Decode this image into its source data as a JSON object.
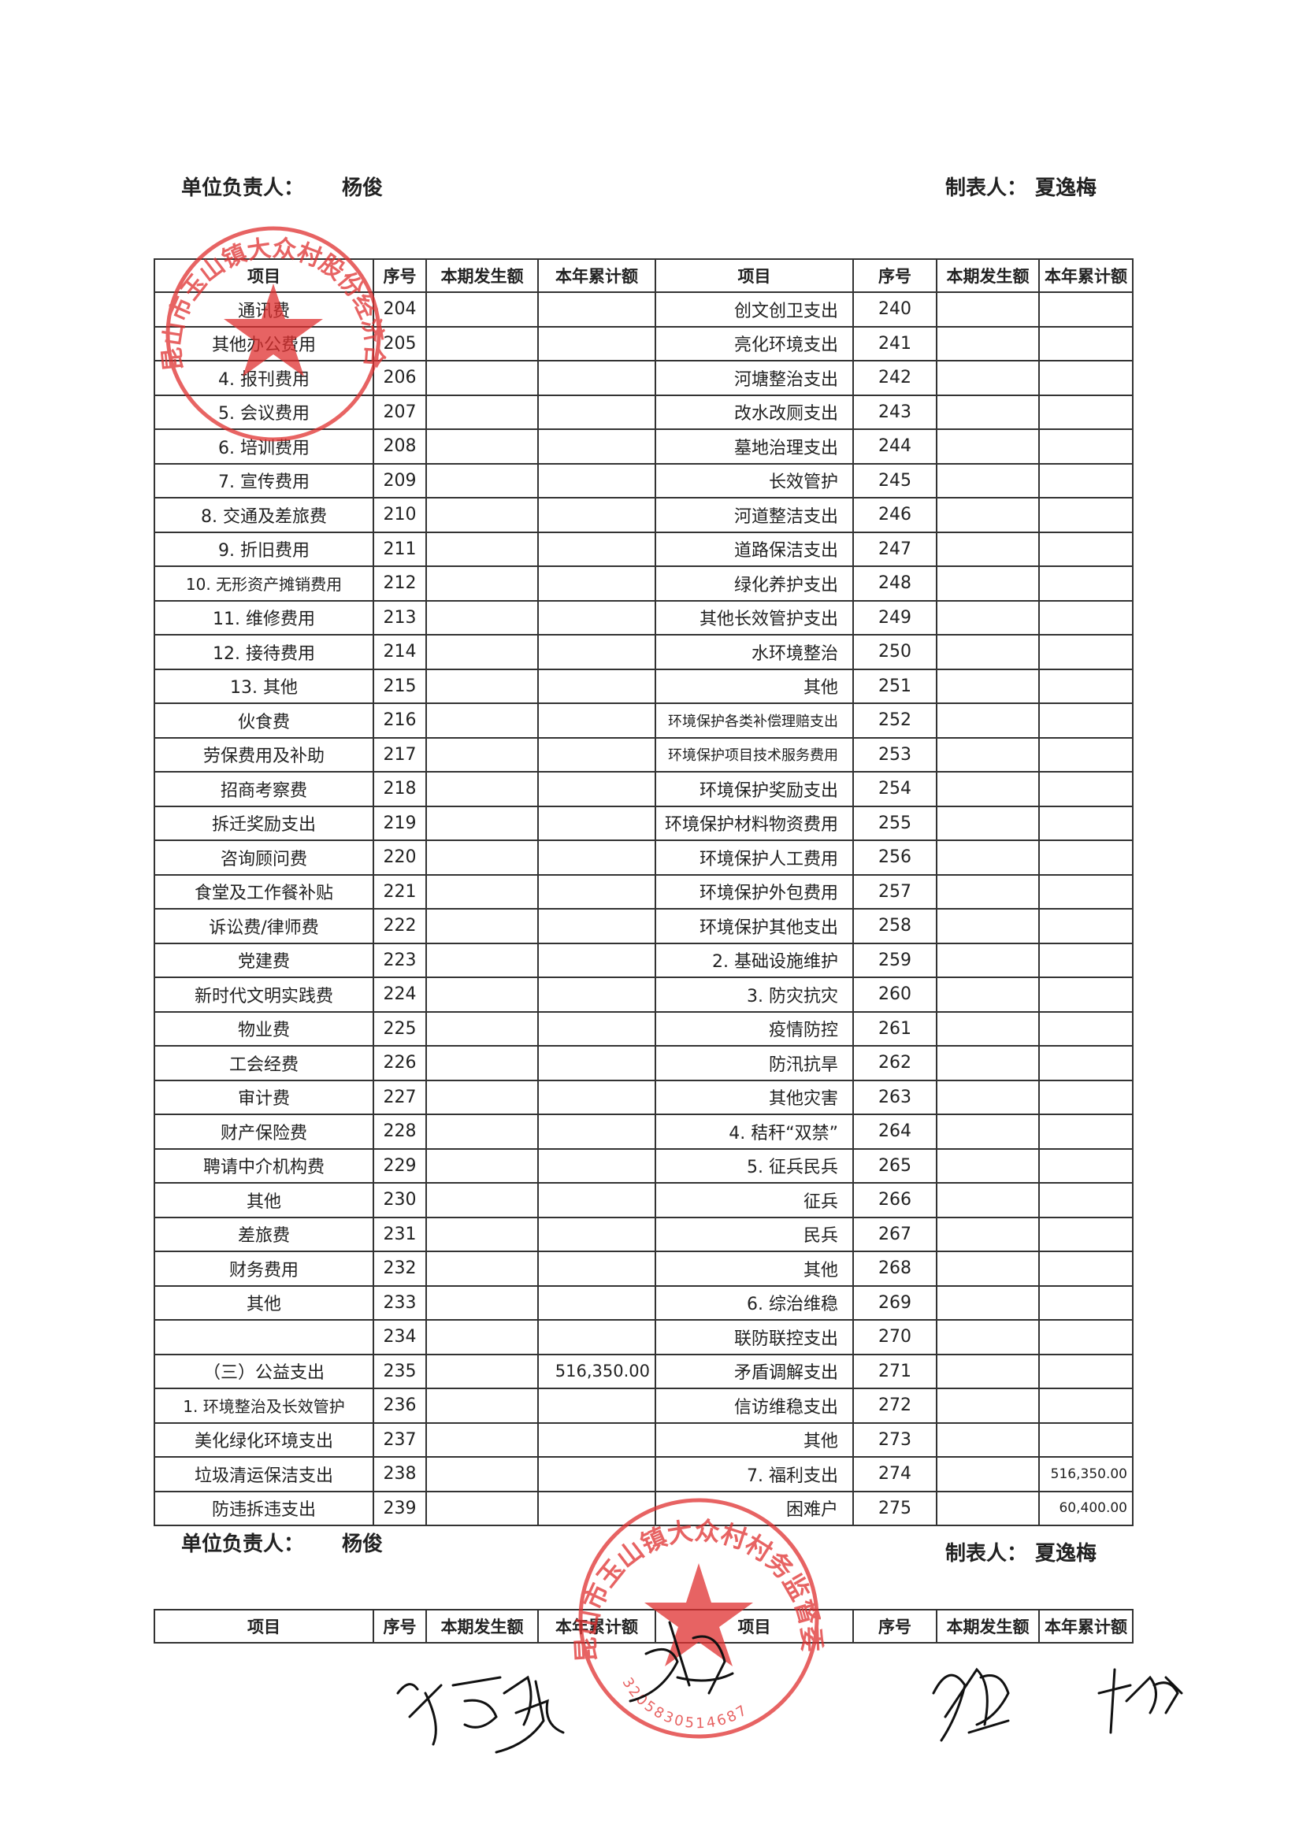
{
  "header": {
    "responsible_label": "单位负责人：",
    "responsible_name": "杨俊",
    "preparer_label": "制表人：",
    "preparer_name": "夏逸梅"
  },
  "table": {
    "columns": [
      "项目",
      "序号",
      "本期发生额",
      "本年累计额",
      "项目",
      "序号",
      "本期发生额",
      "本年累计额"
    ],
    "rows": [
      [
        "通讯费",
        "204",
        null,
        null,
        "创文创卫支出",
        "240",
        null,
        null
      ],
      [
        "其他办公费用",
        "205",
        null,
        null,
        "亮化环境支出",
        "241",
        null,
        null
      ],
      [
        "4. 报刊费用",
        "206",
        null,
        null,
        "河塘整治支出",
        "242",
        null,
        null
      ],
      [
        "5. 会议费用",
        "207",
        null,
        null,
        "改水改厕支出",
        "243",
        null,
        null
      ],
      [
        "6. 培训费用",
        "208",
        null,
        null,
        "墓地治理支出",
        "244",
        null,
        null
      ],
      [
        "7. 宣传费用",
        "209",
        null,
        null,
        "长效管护",
        "245",
        null,
        null
      ],
      [
        "8. 交通及差旅费",
        "210",
        null,
        null,
        "河道整洁支出",
        "246",
        null,
        null
      ],
      [
        "9. 折旧费用",
        "211",
        null,
        null,
        "道路保洁支出",
        "247",
        null,
        null
      ],
      [
        "10. 无形资产摊销费用",
        "212",
        null,
        null,
        "绿化养护支出",
        "248",
        null,
        null
      ],
      [
        "11. 维修费用",
        "213",
        null,
        null,
        "其他长效管护支出",
        "249",
        null,
        null
      ],
      [
        "12. 接待费用",
        "214",
        null,
        null,
        "水环境整治",
        "250",
        null,
        null
      ],
      [
        "13. 其他",
        "215",
        null,
        null,
        "其他",
        "251",
        null,
        null
      ],
      [
        "伙食费",
        "216",
        null,
        null,
        "环境保护各类补偿理赔支出",
        "252",
        null,
        null
      ],
      [
        "劳保费用及补助",
        "217",
        null,
        null,
        "环境保护项目技术服务费用",
        "253",
        null,
        null
      ],
      [
        "招商考察费",
        "218",
        null,
        null,
        "环境保护奖励支出",
        "254",
        null,
        null
      ],
      [
        "拆迁奖励支出",
        "219",
        null,
        null,
        "环境保护材料物资费用",
        "255",
        null,
        null
      ],
      [
        "咨询顾问费",
        "220",
        null,
        null,
        "环境保护人工费用",
        "256",
        null,
        null
      ],
      [
        "食堂及工作餐补贴",
        "221",
        null,
        null,
        "环境保护外包费用",
        "257",
        null,
        null
      ],
      [
        "诉讼费/律师费",
        "222",
        null,
        null,
        "环境保护其他支出",
        "258",
        null,
        null
      ],
      [
        "党建费",
        "223",
        null,
        null,
        "2. 基础设施维护",
        "259",
        null,
        null
      ],
      [
        "新时代文明实践费",
        "224",
        null,
        null,
        "3. 防灾抗灾",
        "260",
        null,
        null
      ],
      [
        "物业费",
        "225",
        null,
        null,
        "疫情防控",
        "261",
        null,
        null
      ],
      [
        "工会经费",
        "226",
        null,
        null,
        "防汛抗旱",
        "262",
        null,
        null
      ],
      [
        "审计费",
        "227",
        null,
        null,
        "其他灾害",
        "263",
        null,
        null
      ],
      [
        "财产保险费",
        "228",
        null,
        null,
        "4. 秸秆“双禁”",
        "264",
        null,
        null
      ],
      [
        "聘请中介机构费",
        "229",
        null,
        null,
        "5. 征兵民兵",
        "265",
        null,
        null
      ],
      [
        "其他",
        "230",
        null,
        null,
        "征兵",
        "266",
        null,
        null
      ],
      [
        "差旅费",
        "231",
        null,
        null,
        "民兵",
        "267",
        null,
        null
      ],
      [
        "财务费用",
        "232",
        null,
        null,
        "其他",
        "268",
        null,
        null
      ],
      [
        "其他",
        "233",
        null,
        null,
        "6. 综治维稳",
        "269",
        null,
        null
      ],
      [
        null,
        "234",
        null,
        null,
        "联防联控支出",
        "270",
        null,
        null
      ],
      [
        "（三）公益支出",
        "235",
        null,
        "516,350.00",
        "矛盾调解支出",
        "271",
        null,
        null
      ],
      [
        "1. 环境整治及长效管护",
        "236",
        null,
        null,
        "信访维稳支出",
        "272",
        null,
        null
      ],
      [
        "美化绿化环境支出",
        "237",
        null,
        null,
        "其他",
        "273",
        null,
        null
      ],
      [
        "垃圾清运保洁支出",
        "238",
        null,
        null,
        "7. 福利支出",
        "274",
        null,
        "516,350.00"
      ],
      [
        "防违拆违支出",
        "239",
        null,
        null,
        "困难户",
        "275",
        null,
        "60,400.00"
      ]
    ]
  },
  "footer": {
    "responsible_label": "单位负责人：",
    "responsible_name": "杨俊",
    "preparer_label": "制表人：",
    "preparer_name": "夏逸梅"
  },
  "next_table": {
    "columns": [
      "项目",
      "序号",
      "本期发生额",
      "本年累计额",
      "项目",
      "序号",
      "本期发生额",
      "本年累计额"
    ]
  },
  "stamps": [
    {
      "text": "昆山市玉山镇大众村股份经济合作社"
    },
    {
      "text": "昆山市玉山镇大众村村务监督委员会",
      "number": "3205830514687"
    }
  ]
}
